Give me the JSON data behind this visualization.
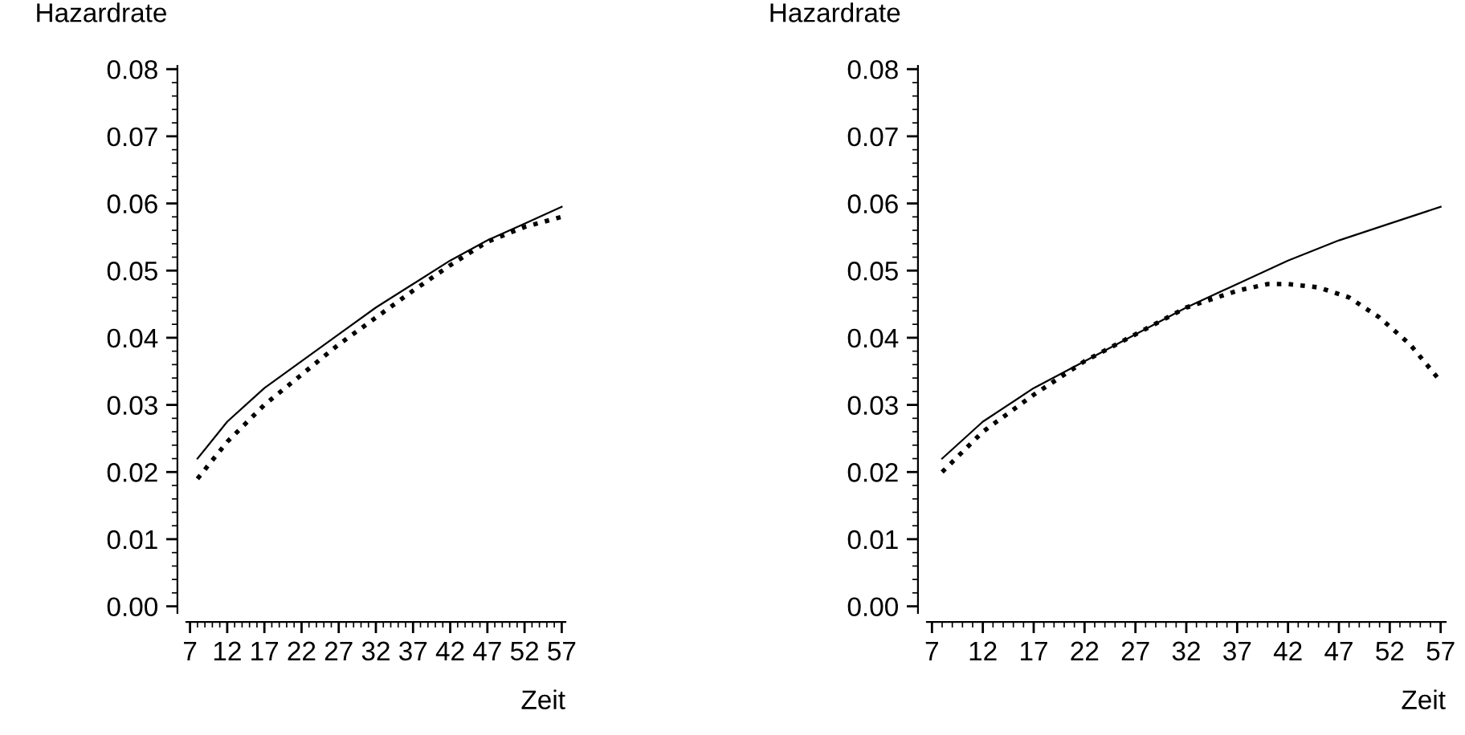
{
  "chart_data": [
    {
      "type": "line",
      "ylabel": "Hazardrate",
      "xlabel": "Zeit",
      "xlim": [
        6.5,
        57.5
      ],
      "ylim": [
        -0.001,
        0.0805
      ],
      "xticks": [
        7,
        12,
        17,
        22,
        27,
        32,
        37,
        42,
        47,
        52,
        57
      ],
      "yticks": [
        {
          "value": 0,
          "label": "0.00"
        },
        {
          "value": 0.01,
          "label": "0.01"
        },
        {
          "value": 0.02,
          "label": "0.02"
        },
        {
          "value": 0.03,
          "label": "0.03"
        },
        {
          "value": 0.04,
          "label": "0.04"
        },
        {
          "value": 0.05,
          "label": "0.05"
        },
        {
          "value": 0.06,
          "label": "0.06"
        },
        {
          "value": 0.07,
          "label": "0.07"
        },
        {
          "value": 0.08,
          "label": "0.08"
        }
      ],
      "grid": false,
      "legend": false,
      "series": [
        {
          "color": "#000000",
          "line_style": "solid",
          "x": [
            8,
            12,
            17,
            22,
            27,
            32,
            37,
            42,
            47,
            52,
            57
          ],
          "values": [
            0.022,
            0.0275,
            0.0325,
            0.0365,
            0.0405,
            0.0445,
            0.048,
            0.0515,
            0.0545,
            0.057,
            0.0595
          ]
        },
        {
          "color": "#000000",
          "line_style": "dotted",
          "x": [
            8,
            12,
            17,
            22,
            27,
            32,
            37,
            42,
            47,
            52,
            57
          ],
          "values": [
            0.019,
            0.0245,
            0.03,
            0.0345,
            0.039,
            0.043,
            0.047,
            0.0508,
            0.0543,
            0.0565,
            0.058
          ]
        }
      ]
    },
    {
      "type": "line",
      "ylabel": "Hazardrate",
      "xlabel": "Zeit",
      "xlim": [
        6.5,
        57.5
      ],
      "ylim": [
        -0.001,
        0.0805
      ],
      "xticks": [
        7,
        12,
        17,
        22,
        27,
        32,
        37,
        42,
        47,
        52,
        57
      ],
      "yticks": [
        {
          "value": 0,
          "label": "0.00"
        },
        {
          "value": 0.01,
          "label": "0.01"
        },
        {
          "value": 0.02,
          "label": "0.02"
        },
        {
          "value": 0.03,
          "label": "0.03"
        },
        {
          "value": 0.04,
          "label": "0.04"
        },
        {
          "value": 0.05,
          "label": "0.05"
        },
        {
          "value": 0.06,
          "label": "0.06"
        },
        {
          "value": 0.07,
          "label": "0.07"
        },
        {
          "value": 0.08,
          "label": "0.08"
        }
      ],
      "grid": false,
      "legend": false,
      "series": [
        {
          "color": "#000000",
          "line_style": "solid",
          "x": [
            8,
            12,
            17,
            22,
            27,
            32,
            37,
            42,
            47,
            52,
            57
          ],
          "values": [
            0.022,
            0.0275,
            0.0325,
            0.0365,
            0.0405,
            0.0445,
            0.048,
            0.0515,
            0.0545,
            0.057,
            0.0595
          ]
        },
        {
          "color": "#000000",
          "line_style": "dotted",
          "x": [
            8,
            12,
            17,
            22,
            27,
            32,
            37,
            40,
            42,
            45,
            48,
            51,
            54,
            57
          ],
          "values": [
            0.02,
            0.026,
            0.0315,
            0.0365,
            0.0405,
            0.0445,
            0.047,
            0.048,
            0.048,
            0.0475,
            0.046,
            0.043,
            0.039,
            0.0335
          ]
        }
      ]
    }
  ]
}
